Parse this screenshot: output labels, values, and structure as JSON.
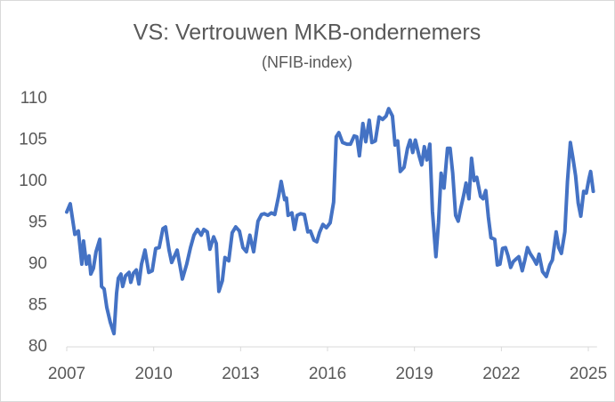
{
  "chart_data": {
    "type": "line",
    "title": "VS: Vertrouwen MKB-ondernemers",
    "subtitle": "(NFIB-index)",
    "color": "#4472c4",
    "xlim": [
      2007,
      2025.3
    ],
    "xticks": [
      2007,
      2010,
      2013,
      2016,
      2019,
      2022,
      2025
    ],
    "ylim": [
      80,
      110
    ],
    "yticks": [
      80,
      85,
      90,
      95,
      100,
      105,
      110
    ],
    "grid": false,
    "x": [
      2007.0,
      2007.12,
      2007.28,
      2007.4,
      2007.52,
      2007.58,
      2007.68,
      2007.77,
      2007.83,
      2007.92,
      2008.01,
      2008.14,
      2008.2,
      2008.29,
      2008.38,
      2008.5,
      2008.63,
      2008.72,
      2008.78,
      2008.87,
      2008.93,
      2009.03,
      2009.15,
      2009.21,
      2009.3,
      2009.4,
      2009.49,
      2009.58,
      2009.7,
      2009.83,
      2009.95,
      2010.07,
      2010.19,
      2010.32,
      2010.41,
      2010.53,
      2010.62,
      2010.81,
      2010.99,
      2011.14,
      2011.27,
      2011.39,
      2011.51,
      2011.64,
      2011.73,
      2011.85,
      2011.94,
      2012.07,
      2012.16,
      2012.25,
      2012.37,
      2012.46,
      2012.59,
      2012.71,
      2012.83,
      2012.96,
      2013.08,
      2013.2,
      2013.32,
      2013.45,
      2013.6,
      2013.72,
      2013.82,
      2013.94,
      2014.06,
      2014.18,
      2014.31,
      2014.4,
      2014.52,
      2014.58,
      2014.64,
      2014.77,
      2014.86,
      2014.95,
      2015.07,
      2015.2,
      2015.32,
      2015.41,
      2015.53,
      2015.63,
      2015.72,
      2015.84,
      2015.96,
      2016.09,
      2016.21,
      2016.3,
      2016.39,
      2016.52,
      2016.67,
      2016.79,
      2016.92,
      2017.01,
      2017.1,
      2017.22,
      2017.32,
      2017.44,
      2017.53,
      2017.65,
      2017.78,
      2017.9,
      2018.02,
      2018.11,
      2018.24,
      2018.33,
      2018.42,
      2018.51,
      2018.64,
      2018.76,
      2018.85,
      2018.94,
      2019.03,
      2019.16,
      2019.25,
      2019.34,
      2019.43,
      2019.53,
      2019.62,
      2019.74,
      2019.83,
      2019.92,
      2020.02,
      2020.14,
      2020.23,
      2020.32,
      2020.42,
      2020.51,
      2020.6,
      2020.69,
      2020.78,
      2020.88,
      2020.97,
      2021.06,
      2021.15,
      2021.28,
      2021.37,
      2021.46,
      2021.55,
      2021.64,
      2021.77,
      2021.86,
      2021.95,
      2022.04,
      2022.14,
      2022.23,
      2022.32,
      2022.41,
      2022.5,
      2022.6,
      2022.72,
      2022.81,
      2022.9,
      2022.99,
      2023.12,
      2023.21,
      2023.3,
      2023.42,
      2023.55,
      2023.67,
      2023.76,
      2023.89,
      2023.98,
      2024.07,
      2024.19,
      2024.28,
      2024.38,
      2024.47,
      2024.56,
      2024.65,
      2024.74,
      2024.84,
      2024.93,
      2025.02,
      2025.08,
      2025.17
    ],
    "values": [
      96.3,
      97.3,
      93.6,
      94.0,
      90.0,
      92.8,
      90.0,
      91.0,
      88.8,
      89.5,
      91.5,
      93.0,
      87.3,
      87.0,
      84.8,
      83.0,
      81.6,
      86.5,
      88.3,
      88.8,
      87.3,
      88.6,
      89.0,
      87.8,
      88.9,
      89.3,
      87.6,
      90.0,
      91.7,
      89.0,
      89.2,
      91.9,
      92.0,
      94.3,
      94.5,
      91.7,
      90.2,
      91.7,
      88.2,
      90.0,
      92.0,
      93.5,
      94.2,
      93.5,
      94.2,
      93.9,
      91.8,
      93.3,
      92.5,
      86.7,
      88.0,
      90.8,
      90.4,
      93.8,
      94.5,
      94.0,
      92.0,
      91.5,
      93.5,
      91.5,
      95.2,
      96.0,
      96.1,
      95.9,
      96.2,
      96.0,
      98.2,
      100.0,
      97.8,
      98.0,
      95.9,
      96.2,
      94.2,
      95.9,
      96.1,
      96.0,
      93.9,
      94.0,
      92.9,
      92.7,
      93.8,
      94.8,
      94.4,
      95.0,
      97.5,
      105.4,
      105.9,
      104.7,
      104.5,
      104.5,
      105.5,
      105.4,
      103.1,
      107.0,
      104.8,
      107.4,
      104.7,
      104.9,
      107.8,
      107.5,
      107.9,
      108.8,
      107.9,
      104.4,
      104.9,
      101.2,
      101.7,
      104.0,
      105.0,
      103.5,
      105.0,
      103.1,
      102.0,
      104.2,
      102.6,
      104.5,
      96.4,
      90.9,
      95.0,
      101.0,
      99.2,
      104.0,
      104.0,
      101.0,
      95.9,
      95.2,
      96.8,
      98.2,
      99.8,
      97.9,
      102.8,
      100.1,
      100.5,
      98.2,
      97.9,
      98.9,
      95.7,
      93.2,
      93.0,
      89.9,
      90.0,
      91.9,
      92.0,
      91.0,
      89.6,
      90.3,
      90.6,
      90.9,
      89.2,
      90.5,
      92.0,
      91.3,
      90.6,
      90.0,
      91.2,
      89.1,
      88.5,
      89.9,
      90.5,
      93.9,
      92.0,
      91.3,
      93.9,
      100.0,
      104.7,
      102.8,
      100.7,
      97.4,
      95.8,
      98.8,
      98.6,
      100.3,
      101.2,
      98.8
    ]
  }
}
